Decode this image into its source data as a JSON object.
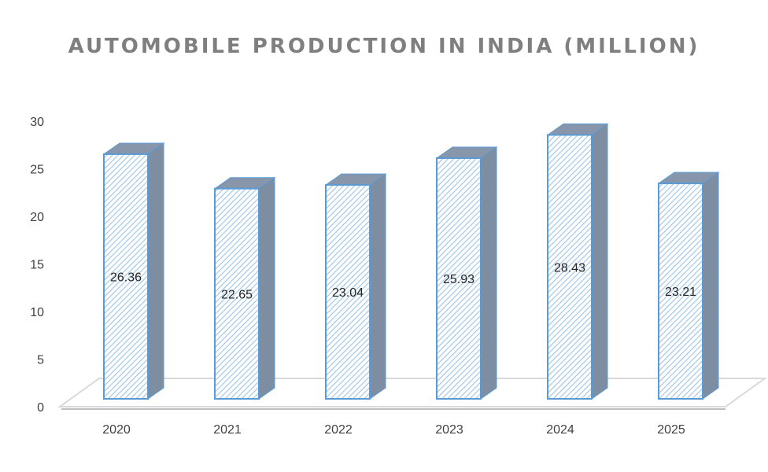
{
  "chart_data": {
    "type": "bar",
    "title": "AUTOMOBILE PRODUCTION IN INDIA (MILLION)",
    "categories": [
      "2020",
      "2021",
      "2022",
      "2023",
      "2024",
      "2025"
    ],
    "values": [
      26.36,
      22.65,
      23.04,
      25.93,
      28.43,
      23.21
    ],
    "data_labels": [
      "26.36",
      "22.65",
      "23.04",
      "25.93",
      "28.43",
      "23.21"
    ],
    "y_ticks": [
      "0",
      "5",
      "10",
      "15",
      "20",
      "25",
      "30"
    ],
    "ylim": [
      0,
      30
    ],
    "grid": false,
    "legend": "none",
    "style": "3d-column-hatched",
    "colors": {
      "bar_hatch": "#9dc3e6",
      "bar_front_bg": "#ffffff",
      "bar_outline": "#5b9bd5",
      "bar_side": "#7d8ea3",
      "bar_top": "#8796aa",
      "floor": "#d9d9d9",
      "title": "#7f7f7f",
      "tick_text": "#404040"
    }
  }
}
